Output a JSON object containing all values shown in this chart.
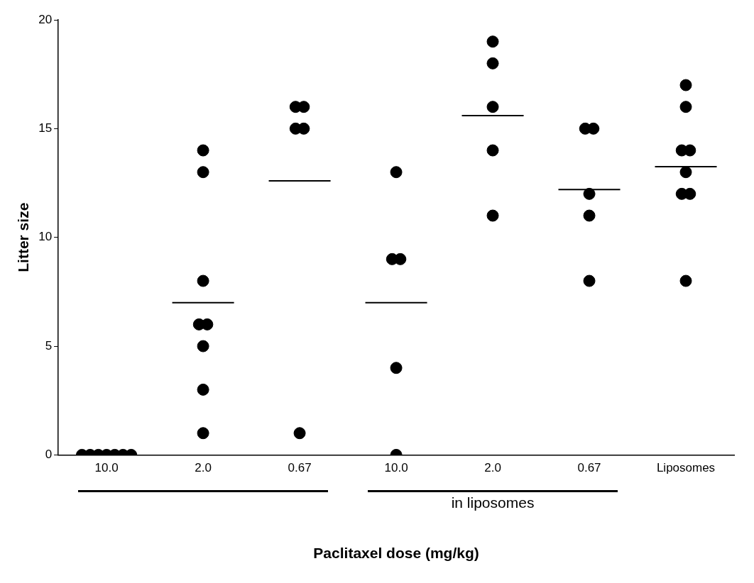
{
  "chart_data": {
    "type": "scatter",
    "xlabel": "Paclitaxel dose (mg/kg)",
    "ylabel": "Litter size",
    "categories": [
      "10.0",
      "2.0",
      "0.67",
      "10.0",
      "2.0",
      "0.67",
      "Liposomes"
    ],
    "ylim": [
      0,
      20
    ],
    "yticks": [
      0,
      5,
      10,
      15,
      20
    ],
    "grid": false,
    "legend": false,
    "marker": "circle",
    "annotations": [
      "in liposomes"
    ],
    "series": [
      {
        "type": "scatter",
        "color": "#000000",
        "values": [
          0,
          14,
          16,
          13,
          19,
          15,
          17
        ]
      },
      {
        "type": "scatter",
        "color": "#000000",
        "values": [
          0,
          13,
          16,
          9,
          18,
          15,
          16
        ]
      },
      {
        "type": "scatter",
        "color": "#000000",
        "values": [
          0,
          8,
          15,
          9,
          16,
          12,
          14
        ]
      },
      {
        "type": "scatter",
        "color": "#000000",
        "values": [
          0,
          6,
          15,
          4,
          14,
          11,
          14
        ]
      },
      {
        "type": "scatter",
        "color": "#000000",
        "values": [
          0,
          6,
          1,
          0,
          11,
          8,
          13
        ]
      },
      {
        "type": "scatter",
        "color": "#000000",
        "values": [
          0,
          5,
          null,
          null,
          null,
          null,
          12
        ]
      },
      {
        "type": "scatter",
        "color": "#000000",
        "values": [
          0,
          3,
          null,
          null,
          null,
          null,
          12
        ]
      },
      {
        "type": "scatter",
        "color": "#000000",
        "values": [
          null,
          1,
          null,
          null,
          null,
          null,
          8
        ]
      },
      {
        "type": "box",
        "color": "#000000",
        "boxes": [
          null,
          {
            "low": 7,
            "q1": 7,
            "median": 7,
            "q3": 7,
            "high": 7
          },
          {
            "low": 12.6,
            "q1": 12.6,
            "median": 12.6,
            "q3": 12.6,
            "high": 12.6
          },
          {
            "low": 7,
            "q1": 7,
            "median": 7,
            "q3": 7,
            "high": 7
          },
          {
            "low": 15.6,
            "q1": 15.6,
            "median": 15.6,
            "q3": 15.6,
            "high": 15.6
          },
          {
            "low": 12.2,
            "q1": 12.2,
            "median": 12.2,
            "q3": 12.2,
            "high": 12.2
          },
          {
            "low": 13.25,
            "q1": 13.25,
            "median": 13.25,
            "q3": 13.25,
            "high": 13.25
          }
        ]
      }
    ]
  }
}
